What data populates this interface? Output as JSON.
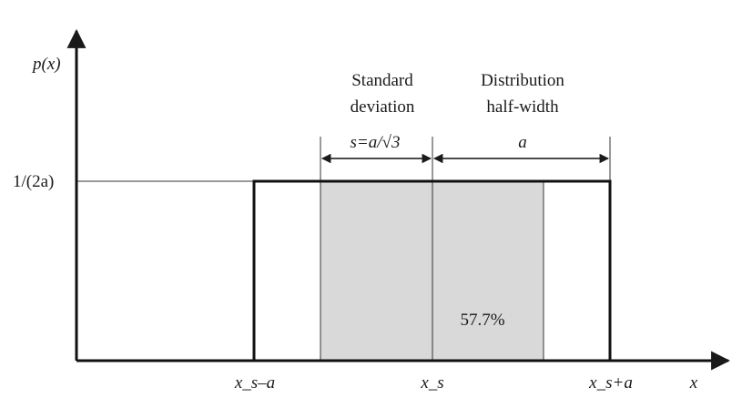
{
  "y_axis_label": "p(x)",
  "x_axis_label": "x",
  "y_level_label": "1/(2a)",
  "std_dev": {
    "line1": "Standard",
    "line2": "deviation",
    "formula": "s=a/√3"
  },
  "half_width": {
    "line1": "Distribution",
    "line2": "half-width",
    "symbol": "a"
  },
  "shaded_percent": "57.7%",
  "x_ticks": {
    "left": "x_s–a",
    "center": "x_s",
    "right": "x_s+a"
  },
  "colors": {
    "shade": "#d9d9d9",
    "ink": "#1a1a1a"
  }
}
